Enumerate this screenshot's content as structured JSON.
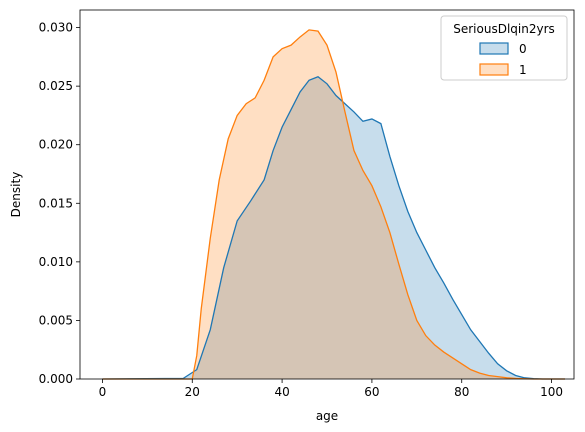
{
  "chart_data": {
    "type": "area",
    "title": "",
    "xlabel": "age",
    "ylabel": "Density",
    "xlim": [
      -5,
      105
    ],
    "ylim": [
      0,
      0.0315
    ],
    "x_ticks": [
      0,
      20,
      40,
      60,
      80,
      100
    ],
    "x_tick_labels": [
      "0",
      "20",
      "40",
      "60",
      "80",
      "100"
    ],
    "y_ticks": [
      0,
      0.005,
      0.01,
      0.015,
      0.02,
      0.025,
      0.03
    ],
    "y_tick_labels": [
      "0.000",
      "0.005",
      "0.010",
      "0.015",
      "0.020",
      "0.025",
      "0.030"
    ],
    "grid": false,
    "legend": {
      "title": "SeriousDlqin2yrs",
      "placement": "top-right"
    },
    "series": [
      {
        "name": "0",
        "color": "#1f77b4",
        "x": [
          0,
          18,
          21,
          24,
          27,
          30,
          33,
          36,
          38,
          40,
          42,
          44,
          46,
          48,
          50,
          52,
          54,
          56,
          58,
          60,
          62,
          64,
          66,
          68,
          70,
          72,
          74,
          76,
          78,
          80,
          82,
          84,
          86,
          88,
          90,
          92,
          94,
          96,
          98,
          100,
          103
        ],
        "y": [
          0,
          5e-05,
          0.0008,
          0.0042,
          0.0095,
          0.0135,
          0.0152,
          0.017,
          0.0195,
          0.0215,
          0.023,
          0.0245,
          0.0255,
          0.0258,
          0.0252,
          0.0242,
          0.0235,
          0.0228,
          0.022,
          0.0222,
          0.0218,
          0.019,
          0.0165,
          0.0143,
          0.0125,
          0.011,
          0.0095,
          0.0082,
          0.0068,
          0.0055,
          0.0042,
          0.0032,
          0.0022,
          0.0013,
          0.0007,
          0.0003,
          0.0001,
          3e-05,
          0,
          0,
          0
        ]
      },
      {
        "name": "1",
        "color": "#ff7f0e",
        "x": [
          0,
          20,
          21,
          22,
          24,
          26,
          28,
          30,
          32,
          34,
          36,
          38,
          40,
          42,
          44,
          46,
          48,
          50,
          52,
          54,
          56,
          58,
          60,
          62,
          64,
          66,
          68,
          70,
          72,
          74,
          76,
          78,
          80,
          82,
          84,
          86,
          88,
          90,
          92,
          94,
          96,
          98,
          100,
          103
        ],
        "y": [
          0,
          0,
          0.002,
          0.006,
          0.012,
          0.017,
          0.0205,
          0.0225,
          0.0235,
          0.024,
          0.0255,
          0.0275,
          0.0282,
          0.0285,
          0.0292,
          0.0298,
          0.0297,
          0.0285,
          0.0262,
          0.0228,
          0.0195,
          0.0178,
          0.0165,
          0.0147,
          0.0125,
          0.0098,
          0.0072,
          0.005,
          0.0037,
          0.0029,
          0.0023,
          0.0018,
          0.0013,
          0.0008,
          0.0005,
          0.0003,
          0.0002,
          0.0001,
          5e-05,
          2e-05,
          0,
          0,
          0,
          0
        ]
      }
    ]
  }
}
